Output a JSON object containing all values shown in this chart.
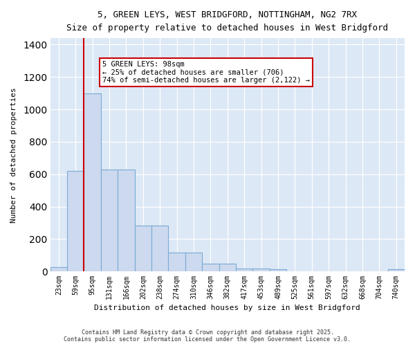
{
  "title_line1": "5, GREEN LEYS, WEST BRIDGFORD, NOTTINGHAM, NG2 7RX",
  "title_line2": "Size of property relative to detached houses in West Bridgford",
  "xlabel": "Distribution of detached houses by size in West Bridgford",
  "ylabel": "Number of detached properties",
  "categories": [
    "23sqm",
    "59sqm",
    "95sqm",
    "131sqm",
    "166sqm",
    "202sqm",
    "238sqm",
    "274sqm",
    "310sqm",
    "346sqm",
    "382sqm",
    "417sqm",
    "453sqm",
    "489sqm",
    "525sqm",
    "561sqm",
    "597sqm",
    "632sqm",
    "668sqm",
    "704sqm",
    "740sqm"
  ],
  "bar_values": [
    28,
    620,
    1100,
    630,
    630,
    285,
    285,
    115,
    115,
    48,
    48,
    20,
    20,
    12,
    0,
    0,
    0,
    0,
    0,
    0,
    12
  ],
  "bar_color": "#ccd9ee",
  "bar_edge_color": "#7aaad4",
  "property_line_x": 2.0,
  "property_line_color": "#cc0000",
  "annotation_text": "5 GREEN LEYS: 98sqm\n← 25% of detached houses are smaller (706)\n74% of semi-detached houses are larger (2,122) →",
  "annotation_box_color": "#ffffff",
  "annotation_box_edge": "#cc0000",
  "ylim": [
    0,
    1440
  ],
  "fig_bg": "#ffffff",
  "plot_bg": "#dce8f5",
  "grid_color": "#ffffff",
  "footer_line1": "Contains HM Land Registry data © Crown copyright and database right 2025.",
  "footer_line2": "Contains public sector information licensed under the Open Government Licence v3.0."
}
